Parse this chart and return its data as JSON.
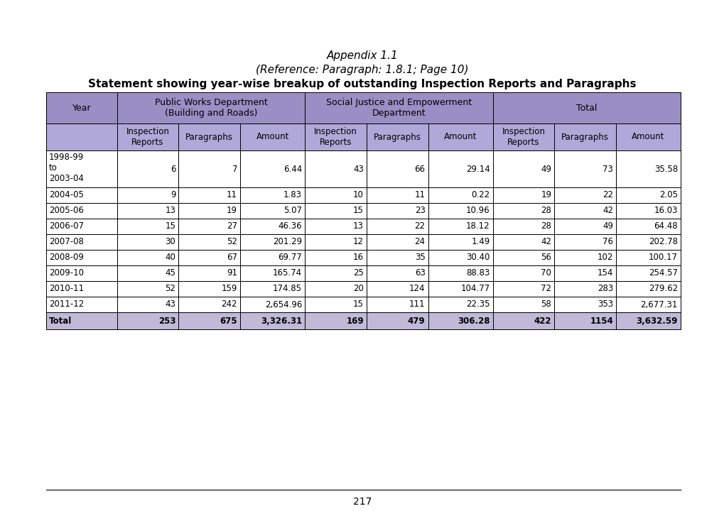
{
  "title_line1": "Appendix 1.1",
  "title_line2": "(Reference: Paragraph: 1.8.1; Page 10)",
  "title_line3": "Statement showing year-wise breakup of outstanding Inspection Reports and Paragraphs",
  "header_bg": "#9B8EC4",
  "subheader_bg": "#B0A8D8",
  "total_bg": "#C0BAD8",
  "rows": [
    [
      "1998-99\nto\n2003-04",
      "6",
      "7",
      "6.44",
      "43",
      "66",
      "29.14",
      "49",
      "73",
      "35.58"
    ],
    [
      "2004-05",
      "9",
      "11",
      "1.83",
      "10",
      "11",
      "0.22",
      "19",
      "22",
      "2.05"
    ],
    [
      "2005-06",
      "13",
      "19",
      "5.07",
      "15",
      "23",
      "10.96",
      "28",
      "42",
      "16.03"
    ],
    [
      "2006-07",
      "15",
      "27",
      "46.36",
      "13",
      "22",
      "18.12",
      "28",
      "49",
      "64.48"
    ],
    [
      "2007-08",
      "30",
      "52",
      "201.29",
      "12",
      "24",
      "1.49",
      "42",
      "76",
      "202.78"
    ],
    [
      "2008-09",
      "40",
      "67",
      "69.77",
      "16",
      "35",
      "30.40",
      "56",
      "102",
      "100.17"
    ],
    [
      "2009-10",
      "45",
      "91",
      "165.74",
      "25",
      "63",
      "88.83",
      "70",
      "154",
      "254.57"
    ],
    [
      "2010-11",
      "52",
      "159",
      "174.85",
      "20",
      "124",
      "104.77",
      "72",
      "283",
      "279.62"
    ],
    [
      "2011-12",
      "43",
      "242",
      "2,654.96",
      "15",
      "111",
      "22.35",
      "58",
      "353",
      "2,677.31"
    ]
  ],
  "total_row": [
    "Total",
    "253",
    "675",
    "3,326.31",
    "169",
    "479",
    "306.28",
    "422",
    "1154",
    "3,632.59"
  ],
  "footer_page": "217",
  "col_widths_rel": [
    1.15,
    1.0,
    1.0,
    1.05,
    1.0,
    1.0,
    1.05,
    1.0,
    1.0,
    1.05
  ]
}
